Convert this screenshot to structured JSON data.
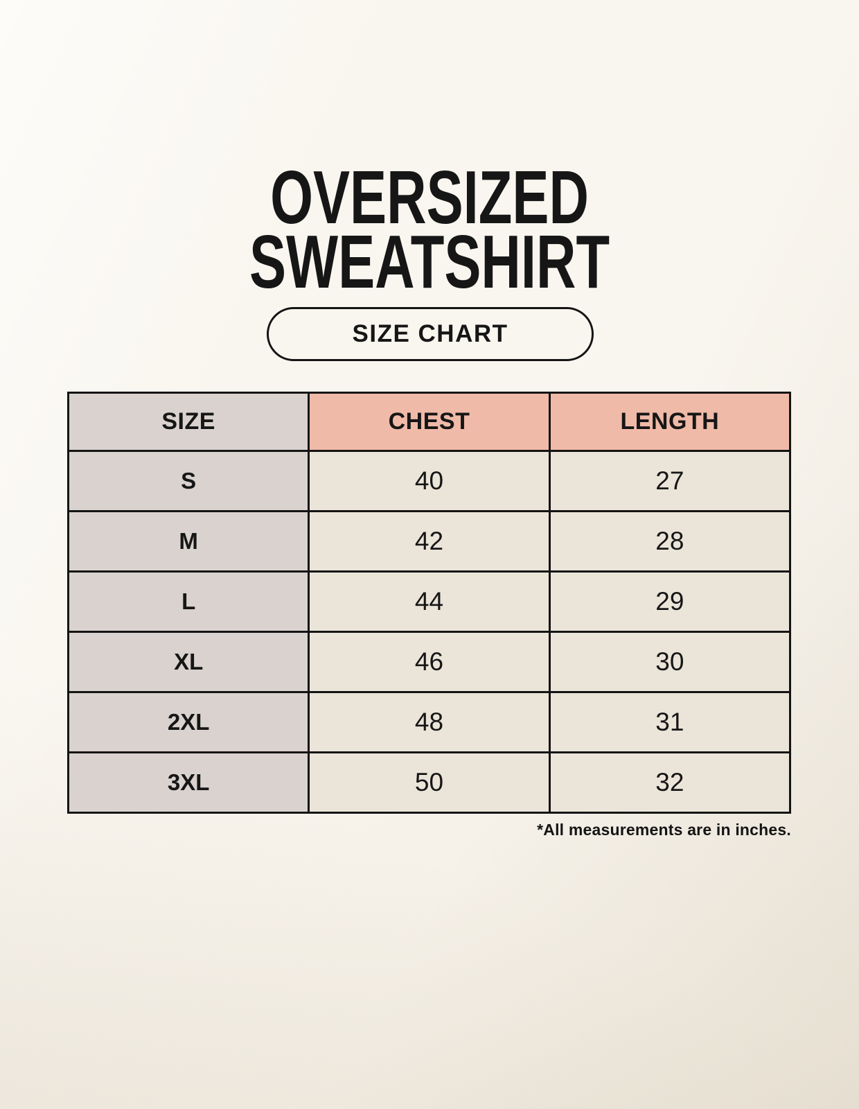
{
  "title": {
    "line1": "OVERSIZED",
    "line2": "SWEATSHIRT"
  },
  "size_chart_button": {
    "label": "SIZE CHART"
  },
  "table": {
    "headers": [
      "SIZE",
      "CHEST",
      "LENGTH"
    ],
    "rows": [
      {
        "size": "S",
        "chest": "40",
        "length": "27"
      },
      {
        "size": "M",
        "chest": "42",
        "length": "28"
      },
      {
        "size": "L",
        "chest": "44",
        "length": "29"
      },
      {
        "size": "XL",
        "chest": "46",
        "length": "30"
      },
      {
        "size": "2XL",
        "chest": "48",
        "length": "31"
      },
      {
        "size": "3XL",
        "chest": "50",
        "length": "32"
      }
    ]
  },
  "footnote": "*All measurements are in inches.",
  "colors": {
    "background": "#f6f1e7",
    "header_accent": "#f0baa8",
    "size_column": "#d9d2cf",
    "data_cell": "#ebe4d9",
    "border": "#141414",
    "text": "#161616"
  },
  "chart_data": {
    "type": "table",
    "title": "OVERSIZED SWEATSHIRT",
    "columns": [
      "SIZE",
      "CHEST",
      "LENGTH"
    ],
    "rows": [
      [
        "S",
        40,
        27
      ],
      [
        "M",
        42,
        28
      ],
      [
        "L",
        44,
        29
      ],
      [
        "XL",
        46,
        30
      ],
      [
        "2XL",
        48,
        31
      ],
      [
        "3XL",
        50,
        32
      ]
    ],
    "units": "inches"
  }
}
